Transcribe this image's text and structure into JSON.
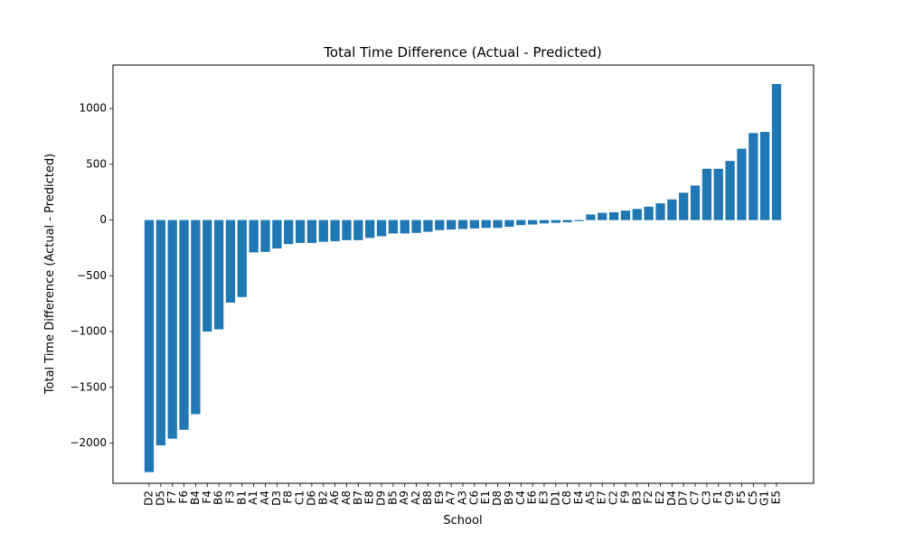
{
  "chart_data": {
    "type": "bar",
    "title": "Total Time Difference (Actual - Predicted)",
    "xlabel": "School",
    "ylabel": "Total Time Difference (Actual - Predicted)",
    "bar_color": "#1f77b4",
    "ylim": [
      -2360,
      1390
    ],
    "yticks": [
      -2000,
      -1500,
      -1000,
      -500,
      0,
      500,
      1000
    ],
    "ytick_labels": [
      "−2000",
      "−1500",
      "−1000",
      "−500",
      "0",
      "500",
      "1000"
    ],
    "grid": false,
    "categories": [
      "D2",
      "D5",
      "F7",
      "F6",
      "B4",
      "F4",
      "B6",
      "F3",
      "B1",
      "A1",
      "A4",
      "D3",
      "F8",
      "C1",
      "D6",
      "B2",
      "A6",
      "A8",
      "B7",
      "E8",
      "D9",
      "B5",
      "A9",
      "A2",
      "B8",
      "E9",
      "A7",
      "A3",
      "C6",
      "E1",
      "D8",
      "B9",
      "C4",
      "E6",
      "E3",
      "D1",
      "C8",
      "E4",
      "A5",
      "E7",
      "C2",
      "F9",
      "B3",
      "F2",
      "E2",
      "D4",
      "D7",
      "C7",
      "C3",
      "F1",
      "C9",
      "F5",
      "C5",
      "G1",
      "E5"
    ],
    "values": [
      -2260,
      -2020,
      -1960,
      -1880,
      -1740,
      -1000,
      -980,
      -740,
      -690,
      -290,
      -285,
      -255,
      -215,
      -205,
      -205,
      -195,
      -190,
      -180,
      -180,
      -160,
      -145,
      -120,
      -120,
      -115,
      -105,
      -90,
      -85,
      -80,
      -75,
      -70,
      -70,
      -60,
      -45,
      -40,
      -30,
      -25,
      -20,
      -10,
      50,
      65,
      70,
      85,
      100,
      120,
      150,
      185,
      245,
      310,
      460,
      460,
      530,
      640,
      780,
      790,
      1220
    ]
  }
}
